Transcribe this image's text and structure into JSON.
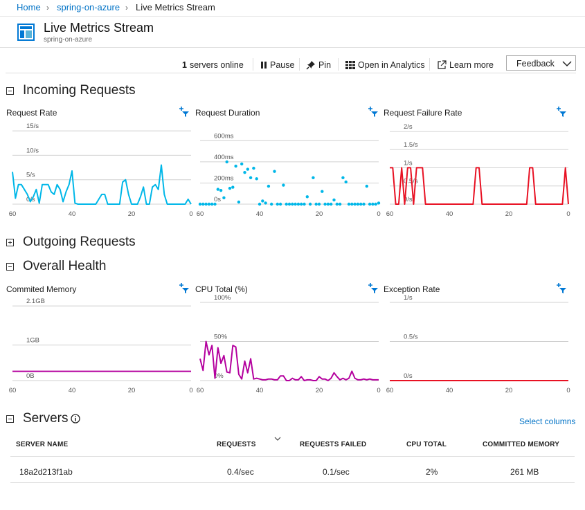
{
  "breadcrumb": {
    "home": "Home",
    "resource": "spring-on-azure",
    "current": "Live Metrics Stream"
  },
  "header": {
    "title": "Live Metrics Stream",
    "subtitle": "spring-on-azure"
  },
  "toolbar": {
    "servers_count": "1",
    "servers_label": "servers online",
    "pause": "Pause",
    "pin": "Pin",
    "analytics": "Open in Analytics",
    "learn": "Learn more",
    "feedback": "Feedback"
  },
  "sections": {
    "incoming": "Incoming Requests",
    "outgoing": "Outgoing Requests",
    "health": "Overall Health",
    "servers": "Servers"
  },
  "chart_data": [
    {
      "id": "request_rate",
      "title": "Request Rate",
      "type": "line",
      "color": "#00b7e8",
      "y_ticks": [
        "15/s",
        "10/s",
        "5/s",
        "0/s"
      ],
      "y_tick_values": [
        15,
        10,
        5,
        0
      ],
      "ylim": [
        0,
        16
      ],
      "x_ticks": [
        "60",
        "40",
        "20",
        "0"
      ],
      "x": [
        60,
        59,
        58,
        57,
        56,
        55,
        54,
        53,
        52,
        51,
        50,
        49,
        48,
        47,
        46,
        45,
        44,
        43,
        42,
        41,
        40,
        39,
        38,
        37,
        36,
        35,
        34,
        33,
        32,
        31,
        30,
        29,
        28,
        27,
        26,
        25,
        24,
        23,
        22,
        21,
        20,
        19,
        18,
        17,
        16,
        15,
        14,
        13,
        12,
        11,
        10,
        9,
        8,
        7,
        6,
        5,
        4,
        3,
        2,
        1,
        0
      ],
      "y": [
        6.6,
        1.2,
        4,
        4,
        3,
        2,
        0.5,
        1.5,
        3,
        0.2,
        4,
        4,
        4,
        2.5,
        2,
        4,
        3,
        0.5,
        2.5,
        4,
        6.8,
        0.2,
        0,
        0,
        0,
        0,
        0,
        0,
        0,
        1,
        2,
        2,
        0,
        0,
        0,
        0,
        0,
        4.5,
        5,
        2,
        0,
        0,
        0,
        1.5,
        3.5,
        0,
        0,
        3.5,
        4,
        3,
        8,
        2,
        0,
        0,
        0,
        0,
        0,
        0,
        0,
        1,
        0
      ]
    },
    {
      "id": "request_duration",
      "title": "Request Duration",
      "type": "scatter",
      "color": "#00b7e8",
      "y_ticks": [
        "600ms",
        "400ms",
        "200ms",
        "0s"
      ],
      "y_tick_values": [
        600,
        400,
        200,
        0
      ],
      "ylim": [
        0,
        740
      ],
      "x_ticks": [
        "60",
        "40",
        "20",
        "0"
      ],
      "x": [
        60,
        59,
        58,
        57,
        56,
        55,
        54,
        53,
        52,
        51,
        50,
        49,
        48,
        47,
        46,
        45,
        44,
        43,
        42,
        41,
        40,
        39,
        38,
        37,
        36,
        35,
        34,
        33,
        32,
        31,
        30,
        29,
        28,
        27,
        26,
        25,
        24,
        23,
        22,
        21,
        20,
        19,
        18,
        17,
        16,
        15,
        14,
        13,
        12,
        11,
        10,
        9,
        8,
        7,
        6,
        5,
        4,
        3,
        2,
        1,
        0
      ],
      "y": [
        0,
        0,
        0,
        0,
        0,
        0,
        140,
        130,
        60,
        400,
        150,
        160,
        360,
        20,
        380,
        300,
        330,
        250,
        340,
        240,
        0,
        30,
        10,
        170,
        0,
        310,
        0,
        0,
        180,
        0,
        0,
        0,
        0,
        0,
        0,
        0,
        70,
        0,
        250,
        0,
        0,
        120,
        0,
        0,
        0,
        40,
        0,
        0,
        250,
        210,
        0,
        0,
        0,
        0,
        0,
        0,
        170,
        0,
        0,
        0,
        10
      ]
    },
    {
      "id": "request_failure_rate",
      "title": "Request Failure Rate",
      "type": "line",
      "color": "#e81123",
      "y_ticks": [
        "2/s",
        "1.5/s",
        "1/s",
        "0.5/s",
        "0/s"
      ],
      "y_tick_values": [
        2,
        1.5,
        1,
        0.5,
        0
      ],
      "ylim": [
        0,
        2.15
      ],
      "x_ticks": [
        "60",
        "40",
        "20",
        "0"
      ],
      "x": [
        60,
        59,
        58,
        57,
        56,
        55,
        54,
        53,
        52,
        51,
        50,
        49,
        48,
        47,
        46,
        45,
        44,
        43,
        42,
        41,
        40,
        39,
        38,
        37,
        36,
        35,
        34,
        33,
        32,
        31,
        30,
        29,
        28,
        27,
        26,
        25,
        24,
        23,
        22,
        21,
        20,
        19,
        18,
        17,
        16,
        15,
        14,
        13,
        12,
        11,
        10,
        9,
        8,
        7,
        6,
        5,
        4,
        3,
        2,
        1,
        0
      ],
      "y": [
        1,
        1,
        0,
        0,
        1,
        0,
        1,
        1,
        0,
        1,
        1,
        1,
        0,
        0,
        0,
        0,
        0,
        0,
        0,
        0,
        0,
        0,
        0,
        0,
        0,
        0,
        0,
        0,
        0,
        1,
        1,
        0,
        0,
        0,
        0,
        0,
        0,
        0,
        0,
        0,
        0,
        0,
        0,
        0,
        0,
        0,
        0,
        1,
        1,
        0,
        0,
        0,
        0,
        0,
        0,
        0,
        0,
        0,
        0,
        1,
        0
      ]
    },
    {
      "id": "committed_memory",
      "title": "Commited Memory",
      "type": "line",
      "color": "#b4009e",
      "y_ticks": [
        "2.1GB",
        "1GB",
        "0B"
      ],
      "y_tick_values": [
        2.1,
        1,
        0
      ],
      "ylim": [
        0,
        2.2
      ],
      "x_ticks": [
        "60",
        "40",
        "20",
        "0"
      ],
      "x": [
        60,
        0
      ],
      "y": [
        0.26,
        0.26
      ]
    },
    {
      "id": "cpu_total",
      "title": "CPU Total (%)",
      "type": "line",
      "color": "#b4009e",
      "y_ticks": [
        "100%",
        "50%",
        "0%"
      ],
      "y_tick_values": [
        100,
        50,
        0
      ],
      "ylim": [
        0,
        100
      ],
      "x_ticks": [
        "60",
        "40",
        "20",
        "0"
      ],
      "x": [
        60,
        59,
        58,
        57,
        56,
        55,
        54,
        53,
        52,
        51,
        50,
        49,
        48,
        47,
        46,
        45,
        44,
        43,
        42,
        41,
        40,
        39,
        38,
        37,
        36,
        35,
        34,
        33,
        32,
        31,
        30,
        29,
        28,
        27,
        26,
        25,
        24,
        23,
        22,
        21,
        20,
        19,
        18,
        17,
        16,
        15,
        14,
        13,
        12,
        11,
        10,
        9,
        8,
        7,
        6,
        5,
        4,
        3,
        2,
        1,
        0
      ],
      "y": [
        28,
        13,
        50,
        33,
        45,
        3,
        42,
        22,
        32,
        11,
        10,
        45,
        43,
        8,
        2,
        25,
        10,
        28,
        2,
        3,
        2,
        1,
        1,
        2,
        2,
        1,
        1,
        6,
        6,
        0,
        0,
        3,
        1,
        1,
        5,
        0,
        1,
        1,
        0,
        0,
        5,
        2,
        2,
        0,
        3,
        10,
        5,
        1,
        3,
        1,
        3,
        12,
        3,
        1,
        1,
        2,
        1,
        2,
        1,
        1,
        1
      ]
    },
    {
      "id": "exception_rate",
      "title": "Exception Rate",
      "type": "line",
      "color": "#e81123",
      "y_ticks": [
        "1/s",
        "0.5/s",
        "0/s"
      ],
      "y_tick_values": [
        1,
        0.5,
        0
      ],
      "ylim": [
        0,
        1
      ],
      "x_ticks": [
        "60",
        "40",
        "20",
        "0"
      ],
      "x": [
        60,
        0
      ],
      "y": [
        0,
        0
      ]
    }
  ],
  "servers": {
    "select_columns": "Select columns",
    "headers": [
      "SERVER NAME",
      "REQUESTS",
      "REQUESTS FAILED",
      "CPU TOTAL",
      "COMMITTED MEMORY"
    ],
    "rows": [
      {
        "name": "18a2d213f1ab",
        "requests": "0.4/sec",
        "failed": "0.1/sec",
        "cpu": "2%",
        "memory": "261 MB"
      }
    ]
  }
}
